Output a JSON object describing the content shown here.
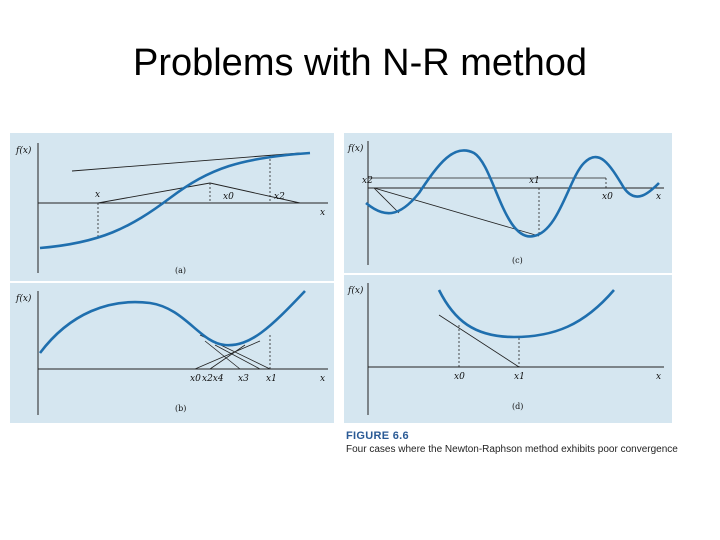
{
  "slide": {
    "title": "Problems with N-R method"
  },
  "figure": {
    "number": "FIGURE 6.6",
    "caption": "Four cases where the Newton-Raphson method exhibits poor convergence",
    "colors": {
      "curve": "#1f6fae",
      "line": "#222222",
      "panel_bg": "#d5e6f0",
      "caption_title": "#2a5a95"
    },
    "panels": {
      "a": {
        "ylabel": "f(x)",
        "xlabel": "x",
        "tag": "(a)",
        "x_labels": [
          "x",
          "x0",
          "x2"
        ]
      },
      "b": {
        "ylabel": "f(x)",
        "xlabel": "x",
        "tag": "(b)",
        "x_labels": [
          "x0",
          "x2x4",
          "x3",
          "x1"
        ]
      },
      "c": {
        "ylabel": "f(x)",
        "xlabel": "x",
        "tag": "(c)",
        "x_labels": [
          "x2",
          "x1",
          "x0"
        ]
      },
      "d": {
        "ylabel": "f(x)",
        "xlabel": "x",
        "tag": "(d)",
        "x_labels": [
          "x0",
          "x1"
        ]
      }
    }
  }
}
